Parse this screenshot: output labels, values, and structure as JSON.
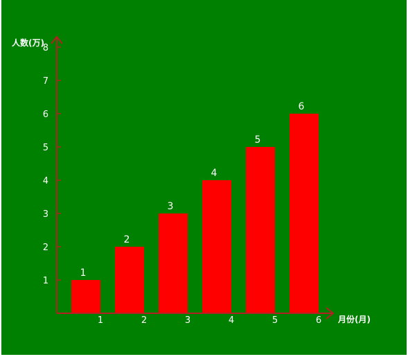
{
  "colors": {
    "background": "#008000",
    "bar": "#ff0000",
    "axis": "#b22222",
    "text": "#ffffff"
  },
  "chart_data": {
    "type": "bar",
    "title": "",
    "xlabel": "月份(月)",
    "ylabel": "人数(万)",
    "categories": [
      "1",
      "2",
      "3",
      "4",
      "5",
      "6"
    ],
    "values": [
      1,
      2,
      3,
      4,
      5,
      6
    ],
    "data_labels": [
      "1",
      "2",
      "3",
      "4",
      "5",
      "6"
    ],
    "yticks": [
      "1",
      "2",
      "3",
      "4",
      "5",
      "6",
      "7",
      "8"
    ],
    "ylim": [
      0,
      8
    ],
    "grid": false,
    "legend": "none"
  }
}
